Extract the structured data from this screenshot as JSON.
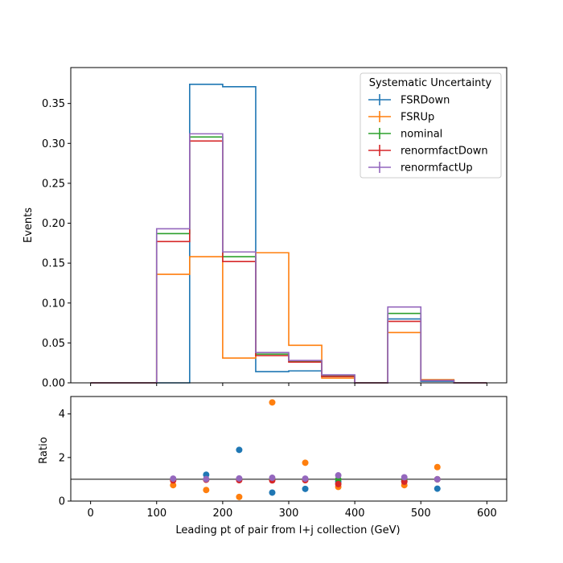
{
  "chart_data": [
    {
      "type": "step",
      "xlabel": "",
      "ylabel": "Events",
      "xlim": [
        -30,
        630
      ],
      "ylim": [
        0,
        0.395
      ],
      "xticks": [
        0,
        100,
        200,
        300,
        400,
        500,
        600
      ],
      "yticks": [
        0.0,
        0.05,
        0.1,
        0.15,
        0.2,
        0.25,
        0.3,
        0.35
      ],
      "ytick_labels": [
        "0.00",
        "0.05",
        "0.10",
        "0.15",
        "0.20",
        "0.25",
        "0.30",
        "0.35"
      ],
      "bin_edges": [
        0,
        50,
        100,
        150,
        200,
        250,
        300,
        350,
        400,
        450,
        500,
        550,
        600
      ],
      "legend": {
        "title": "Systematic Uncertainty",
        "position": "top-right"
      },
      "series": [
        {
          "name": "FSRDown",
          "color": "#1f77b4",
          "values": [
            0,
            0,
            0,
            0.374,
            0.371,
            0.014,
            0.015,
            0.008,
            0,
            0.08,
            0.002,
            0
          ]
        },
        {
          "name": "FSRUp",
          "color": "#ff7f0e",
          "values": [
            0,
            0,
            0.136,
            0.158,
            0.031,
            0.163,
            0.047,
            0.006,
            0,
            0.063,
            0.004,
            0
          ]
        },
        {
          "name": "nominal",
          "color": "#2ca02c",
          "values": [
            0,
            0,
            0.187,
            0.308,
            0.158,
            0.036,
            0.027,
            0.009,
            0,
            0.087,
            0.003,
            0
          ]
        },
        {
          "name": "renormfactDown",
          "color": "#d62728",
          "values": [
            0,
            0,
            0.177,
            0.303,
            0.152,
            0.034,
            0.026,
            0.008,
            0,
            0.077,
            0.003,
            0
          ]
        },
        {
          "name": "renormfactUp",
          "color": "#9467bd",
          "values": [
            0,
            0,
            0.193,
            0.312,
            0.164,
            0.038,
            0.028,
            0.01,
            0,
            0.095,
            0.003,
            0
          ]
        }
      ]
    },
    {
      "type": "scatter",
      "xlabel": "Leading pt of pair from l+j collection (GeV)",
      "ylabel": "Ratio",
      "xlim": [
        -30,
        630
      ],
      "ylim": [
        0,
        4.8
      ],
      "xticks": [
        0,
        100,
        200,
        300,
        400,
        500,
        600
      ],
      "yticks": [
        0,
        2,
        4
      ],
      "reference_line": 1,
      "x": [
        125,
        175,
        225,
        275,
        325,
        375,
        475,
        525
      ],
      "series": [
        {
          "name": "FSRDown",
          "color": "#1f77b4",
          "values": [
            null,
            1.21,
            2.35,
            0.39,
            0.56,
            0.89,
            0.92,
            0.57
          ]
        },
        {
          "name": "FSRUp",
          "color": "#ff7f0e",
          "values": [
            0.73,
            0.51,
            0.19,
            4.53,
            1.76,
            0.65,
            0.73,
            1.56
          ]
        },
        {
          "name": "nominal",
          "color": "#2ca02c",
          "values": [
            1.0,
            1.0,
            1.0,
            1.0,
            1.0,
            1.0,
            1.0,
            1.0
          ]
        },
        {
          "name": "renormfactDown",
          "color": "#d62728",
          "values": [
            0.95,
            0.98,
            0.96,
            0.95,
            0.96,
            0.78,
            0.89,
            1.0
          ]
        },
        {
          "name": "renormfactUp",
          "color": "#9467bd",
          "values": [
            1.03,
            1.01,
            1.04,
            1.07,
            1.03,
            1.18,
            1.09,
            1.0
          ]
        }
      ]
    }
  ]
}
